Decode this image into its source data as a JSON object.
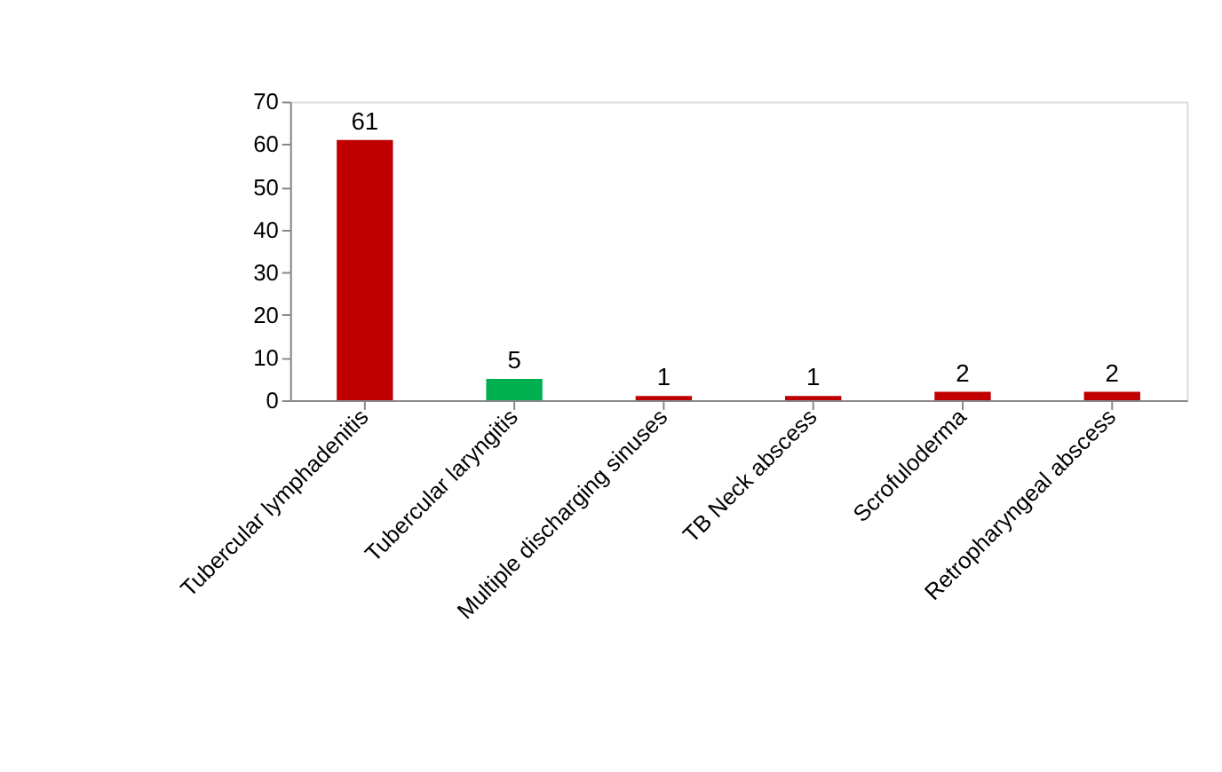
{
  "chart_data": {
    "type": "bar",
    "categories": [
      "Tubercular lymphadenitis",
      "Tubercular laryngitis",
      "Multiple discharging sinuses",
      "TB Neck abscess",
      "Scrofuloderma",
      "Retropharyngeal abscess"
    ],
    "values": [
      61,
      5,
      1,
      1,
      2,
      2
    ],
    "colors": [
      "#c00000",
      "#00b050",
      "#c00000",
      "#c00000",
      "#c00000",
      "#c00000"
    ],
    "ylim": [
      0,
      70
    ],
    "yticks": [
      0,
      10,
      20,
      30,
      40,
      50,
      60,
      70
    ],
    "grid": false,
    "data_labels": true
  }
}
